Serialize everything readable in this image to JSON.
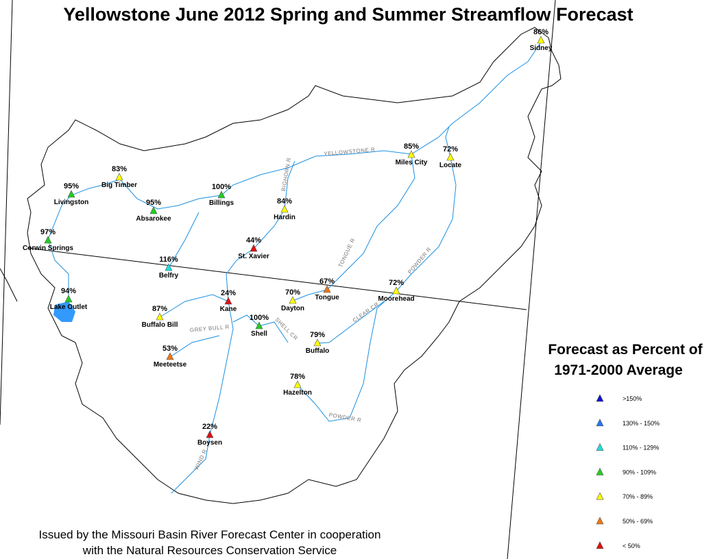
{
  "title": "Yellowstone June 2012 Spring and Summer Streamflow Forecast",
  "stations": [
    {
      "name": "Sidney",
      "percent": "86%",
      "color": "#ffff00"
    },
    {
      "name": "Miles City",
      "percent": "85%",
      "color": "#ffff00"
    },
    {
      "name": "Locate",
      "percent": "72%",
      "color": "#ffff00"
    },
    {
      "name": "Big Timber",
      "percent": "83%",
      "color": "#ffff00"
    },
    {
      "name": "Livingston",
      "percent": "95%",
      "color": "#22cc22"
    },
    {
      "name": "Billings",
      "percent": "100%",
      "color": "#22cc22"
    },
    {
      "name": "Absarokee",
      "percent": "95%",
      "color": "#22cc22"
    },
    {
      "name": "Hardin",
      "percent": "84%",
      "color": "#ffff00"
    },
    {
      "name": "Corwin Springs",
      "percent": "97%",
      "color": "#22cc22"
    },
    {
      "name": "St. Xavier",
      "percent": "44%",
      "color": "#dd1111"
    },
    {
      "name": "Belfry",
      "percent": "116%",
      "color": "#22dddd"
    },
    {
      "name": "Lake Outlet",
      "percent": "94%",
      "color": "#22cc22"
    },
    {
      "name": "Kane",
      "percent": "24%",
      "color": "#dd1111"
    },
    {
      "name": "Dayton",
      "percent": "70%",
      "color": "#ffff00"
    },
    {
      "name": "Tongue",
      "percent": "67%",
      "color": "#ee7711"
    },
    {
      "name": "Moorehead",
      "percent": "72%",
      "color": "#ffff00"
    },
    {
      "name": "Buffalo Bill",
      "percent": "87%",
      "color": "#ffff00"
    },
    {
      "name": "Shell",
      "percent": "100%",
      "color": "#22cc22"
    },
    {
      "name": "Buffalo",
      "percent": "79%",
      "color": "#ffff00"
    },
    {
      "name": "Meeteetse",
      "percent": "53%",
      "color": "#ee7711"
    },
    {
      "name": "Hazelton",
      "percent": "78%",
      "color": "#ffff00"
    },
    {
      "name": "Boysen",
      "percent": "22%",
      "color": "#dd1111"
    }
  ],
  "rivers": [
    "YELLOWSTONE R",
    "BIGHORN R",
    "TONGUE R",
    "POWDER R",
    "CLEAR CR",
    "SHELL CR",
    "GREY BULL R",
    "POWDER R",
    "WIND R"
  ],
  "legend": {
    "title": [
      "Forecast as Percent of",
      "1971-2000 Average"
    ],
    "entries": [
      {
        "label": ">150%",
        "color": "#1111cc"
      },
      {
        "label": "130% - 150%",
        "color": "#2277ee"
      },
      {
        "label": "110% - 129%",
        "color": "#22dddd"
      },
      {
        "label": "90% - 109%",
        "color": "#22cc22"
      },
      {
        "label": "70% - 89%",
        "color": "#ffff00"
      },
      {
        "label": "50% - 69%",
        "color": "#ee7711"
      },
      {
        "label": "< 50%",
        "color": "#dd1111"
      }
    ]
  },
  "footer": [
    "Issued by the Missouri Basin River Forecast Center in cooperation",
    "with the Natural Resources Conservation Service"
  ]
}
